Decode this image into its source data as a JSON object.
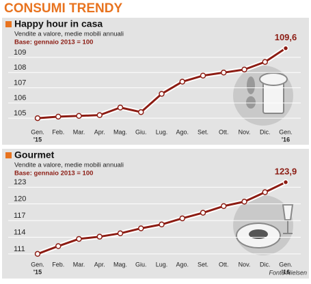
{
  "title": "CONSUMI TRENDY",
  "source": "Fonte Nielsen",
  "chart_data": [
    {
      "type": "line",
      "title": "Happy hour in casa",
      "subtitle": "Vendite a valore, medie mobili annuali",
      "note": "Base: gennaio 2013 = 100",
      "categories": [
        "Gen.",
        "Feb.",
        "Mar.",
        "Apr.",
        "Mag.",
        "Giu.",
        "Lug.",
        "Ago.",
        "Set.",
        "Ott.",
        "Nov.",
        "Dic.",
        "Gen."
      ],
      "x_year_labels": [
        "'15",
        null,
        null,
        null,
        null,
        null,
        null,
        null,
        null,
        null,
        null,
        null,
        "'16"
      ],
      "values": [
        105.0,
        105.1,
        105.15,
        105.2,
        105.7,
        105.4,
        106.6,
        107.4,
        107.8,
        108.0,
        108.2,
        108.7,
        109.6
      ],
      "value_labels": [
        null,
        null,
        null,
        null,
        null,
        null,
        null,
        null,
        null,
        null,
        null,
        null,
        "109,6"
      ],
      "color": "#8c1c13",
      "ylim": [
        104.6,
        109.9
      ],
      "yticks": [
        105,
        106,
        107,
        108,
        109
      ],
      "grid": true
    },
    {
      "type": "line",
      "title": "Gourmet",
      "subtitle": "Vendite a valore, medie mobili annuali",
      "note": "Base: gennaio 2013 = 100",
      "categories": [
        "Gen.",
        "Feb.",
        "Mar.",
        "Apr.",
        "Mag.",
        "Giu.",
        "Lug.",
        "Ago.",
        "Set.",
        "Ott.",
        "Nov.",
        "Dic.",
        "Gen."
      ],
      "x_year_labels": [
        "'15",
        null,
        null,
        null,
        null,
        null,
        null,
        null,
        null,
        null,
        null,
        null,
        "'16"
      ],
      "values": [
        111.0,
        112.4,
        113.7,
        114.1,
        114.7,
        115.6,
        116.3,
        117.4,
        118.4,
        119.6,
        120.4,
        122.1,
        123.9
      ],
      "value_labels": [
        null,
        null,
        null,
        null,
        null,
        null,
        null,
        null,
        null,
        null,
        null,
        null,
        "123,9"
      ],
      "color": "#8c1c13",
      "ylim": [
        110.5,
        124.5
      ],
      "yticks": [
        111,
        114,
        117,
        120,
        123
      ],
      "grid": true
    }
  ]
}
